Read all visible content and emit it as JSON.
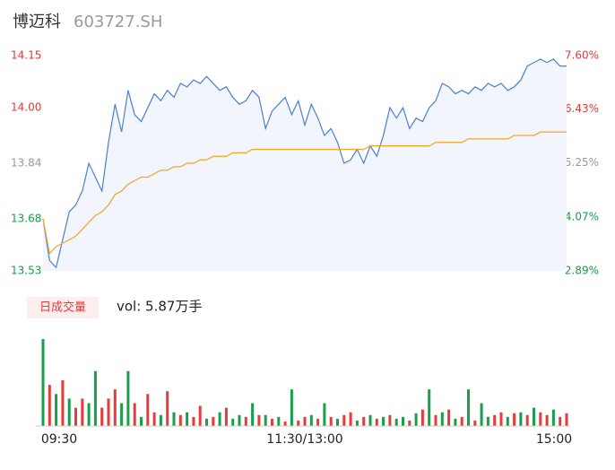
{
  "chart_data": {
    "type": "intraday",
    "title": "博迈科",
    "subtitle": "603727.SH",
    "ylim": [
      13.53,
      14.15
    ],
    "yticks": [
      {
        "value": 14.15,
        "label": "14.15"
      },
      {
        "value": 14.0,
        "label": "14.00"
      },
      {
        "value": 13.84,
        "label": "13.84"
      },
      {
        "value": 13.68,
        "label": "13.68"
      },
      {
        "value": 13.53,
        "label": "13.53"
      }
    ],
    "y2lim": [
      2.89,
      7.6
    ],
    "y2ticks": [
      {
        "value": 7.6,
        "label": "7.60%"
      },
      {
        "value": 6.43,
        "label": "6.43%"
      },
      {
        "value": 5.25,
        "label": "5.25%"
      },
      {
        "value": 4.07,
        "label": "4.07%"
      },
      {
        "value": 2.89,
        "label": "2.89%"
      }
    ],
    "up_color": "#e63b3b",
    "down_color": "#1a9e4a",
    "x_labels": [
      "09:30",
      "11:30/13:00",
      "15:00"
    ],
    "series": [
      {
        "color": "#4a7fd9",
        "values": [
          13.68,
          13.56,
          13.54,
          13.62,
          13.7,
          13.72,
          13.76,
          13.84,
          13.8,
          13.76,
          13.9,
          14.01,
          13.93,
          14.05,
          13.98,
          13.96,
          14.0,
          14.04,
          14.02,
          14.05,
          14.03,
          14.07,
          14.06,
          14.08,
          14.07,
          14.09,
          14.07,
          14.05,
          14.06,
          14.03,
          14.01,
          14.02,
          14.05,
          14.03,
          13.94,
          13.99,
          14.01,
          14.03,
          13.98,
          14.02,
          13.95,
          14.01,
          13.97,
          13.92,
          13.94,
          13.9,
          13.84,
          13.85,
          13.88,
          13.84,
          13.89,
          13.86,
          13.92,
          14.0,
          13.97,
          14.0,
          13.94,
          13.97,
          13.96,
          14.0,
          14.02,
          14.07,
          14.06,
          14.04,
          14.05,
          14.04,
          14.06,
          14.05,
          14.07,
          14.06,
          14.07,
          14.05,
          14.06,
          14.08,
          14.12,
          14.13,
          14.14,
          14.13,
          14.14,
          14.12,
          14.12
        ]
      },
      {
        "color": "#f5a623",
        "values": [
          13.68,
          13.58,
          13.6,
          13.61,
          13.62,
          13.63,
          13.65,
          13.67,
          13.69,
          13.7,
          13.72,
          13.75,
          13.76,
          13.78,
          13.79,
          13.8,
          13.8,
          13.81,
          13.82,
          13.82,
          13.83,
          13.83,
          13.84,
          13.84,
          13.85,
          13.85,
          13.86,
          13.86,
          13.86,
          13.87,
          13.87,
          13.87,
          13.88,
          13.88,
          13.88,
          13.88,
          13.88,
          13.88,
          13.88,
          13.88,
          13.88,
          13.88,
          13.88,
          13.88,
          13.88,
          13.88,
          13.88,
          13.88,
          13.88,
          13.88,
          13.89,
          13.89,
          13.89,
          13.89,
          13.89,
          13.89,
          13.89,
          13.89,
          13.89,
          13.89,
          13.9,
          13.9,
          13.9,
          13.9,
          13.9,
          13.91,
          13.91,
          13.91,
          13.91,
          13.91,
          13.91,
          13.91,
          13.92,
          13.92,
          13.92,
          13.92,
          13.93,
          13.93,
          13.93,
          13.93,
          13.93
        ]
      }
    ],
    "volume_title": "日成交量",
    "volume_label": "vol: 5.87万手",
    "volume_series": [
      {
        "color": "#e63b3b",
        "values": [
          null,
          45,
          null,
          50,
          null,
          20,
          30,
          null,
          null,
          20,
          30,
          40,
          null,
          null,
          25,
          null,
          35,
          15,
          null,
          38,
          null,
          12,
          null,
          10,
          22,
          null,
          10,
          null,
          20,
          null,
          null,
          10,
          null,
          12,
          null,
          8,
          null,
          5,
          null,
          6,
          10,
          null,
          8,
          null,
          10,
          null,
          12,
          15,
          null,
          10,
          null,
          8,
          null,
          12,
          null,
          null,
          6,
          null,
          18,
          null,
          12,
          null,
          18,
          null,
          10,
          null,
          6,
          null,
          null,
          12,
          15,
          null,
          14,
          null,
          12,
          null,
          15,
          12,
          null,
          10,
          14
        ]
      },
      {
        "color": "#1a9e4a",
        "values": [
          95,
          null,
          35,
          null,
          30,
          null,
          null,
          25,
          60,
          null,
          null,
          null,
          25,
          60,
          null,
          10,
          null,
          null,
          12,
          null,
          15,
          null,
          15,
          null,
          null,
          8,
          null,
          15,
          null,
          8,
          12,
          null,
          25,
          null,
          12,
          null,
          10,
          null,
          40,
          null,
          null,
          12,
          null,
          25,
          null,
          8,
          null,
          null,
          6,
          null,
          12,
          null,
          10,
          null,
          8,
          10,
          null,
          14,
          null,
          40,
          null,
          15,
          null,
          8,
          null,
          40,
          null,
          25,
          10,
          null,
          null,
          10,
          null,
          15,
          null,
          20,
          null,
          null,
          18,
          null,
          null
        ]
      }
    ]
  }
}
